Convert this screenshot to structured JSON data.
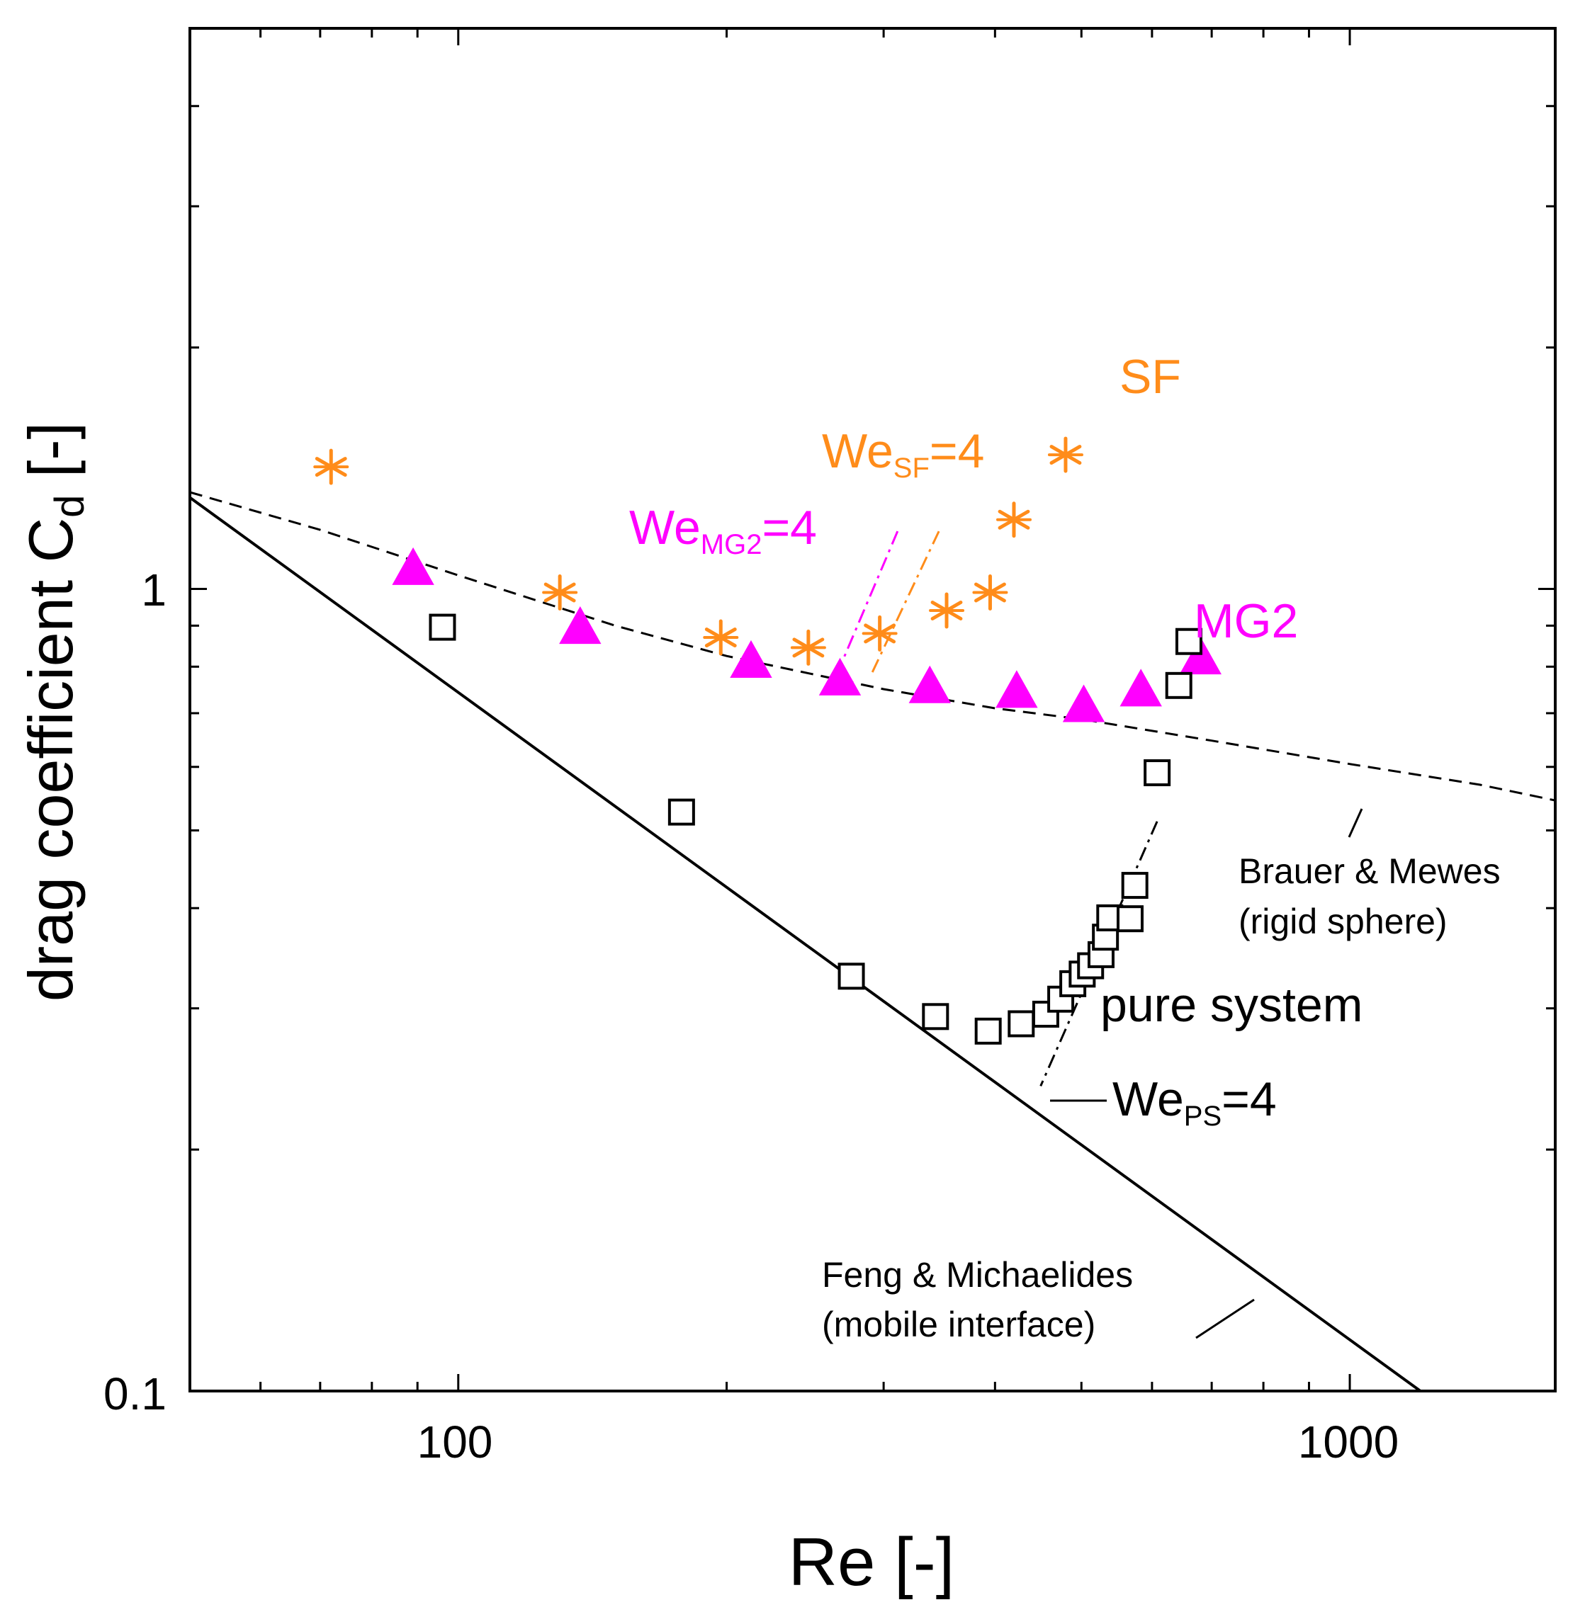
{
  "chart_data": {
    "type": "scatter",
    "xscale": "log",
    "yscale": "log",
    "xlim": [
      50,
      1700
    ],
    "ylim": [
      0.1,
      5
    ],
    "xlabel": "Re [-]",
    "ylabel_main": "drag coefficient C",
    "ylabel_sub": "d",
    "ylabel_tail": " [-]",
    "x_ticks": [
      {
        "value": 100,
        "label": "100"
      },
      {
        "value": 1000,
        "label": "1000"
      }
    ],
    "y_ticks": [
      {
        "value": 0.1,
        "label": "0.1"
      },
      {
        "value": 1,
        "label": "1"
      }
    ],
    "colors": {
      "sf": "#ff8c1a",
      "mg2": "#ff00ff",
      "pure": "#000000"
    },
    "series": [
      {
        "name": "SF",
        "marker": "asterisk",
        "x": [
          72,
          130,
          197,
          247,
          297,
          353,
          395,
          420,
          480
        ],
        "y": [
          1.42,
          0.99,
          0.87,
          0.845,
          0.88,
          0.94,
          0.99,
          1.22,
          1.47
        ]
      },
      {
        "name": "MG2",
        "marker": "triangle",
        "x": [
          89,
          137,
          213,
          268,
          338,
          423,
          503,
          583,
          680
        ],
        "y": [
          1.06,
          0.895,
          0.812,
          0.772,
          0.755,
          0.745,
          0.715,
          0.748,
          0.82
        ]
      },
      {
        "name": "pure system",
        "marker": "square",
        "x": [
          96,
          178,
          276,
          343,
          393,
          428,
          456,
          474,
          489,
          501,
          512,
          526,
          532,
          538,
          567,
          574,
          608,
          643,
          660
        ],
        "y": [
          0.896,
          0.527,
          0.329,
          0.293,
          0.281,
          0.287,
          0.295,
          0.308,
          0.322,
          0.331,
          0.339,
          0.35,
          0.368,
          0.389,
          0.388,
          0.427,
          0.59,
          0.758,
          0.86
        ]
      }
    ],
    "lines": [
      {
        "name": "Brauer & Mewes (rigid sphere)",
        "style": "dashed",
        "x": [
          50,
          70,
          100,
          150,
          200,
          300,
          400,
          500,
          700,
          1000,
          1400,
          1700
        ],
        "y": [
          1.32,
          1.185,
          1.04,
          0.9,
          0.825,
          0.75,
          0.71,
          0.688,
          0.647,
          0.605,
          0.57,
          0.545
        ]
      },
      {
        "name": "Feng & Michaelides (mobile interface)",
        "style": "solid",
        "x": [
          50,
          1200
        ],
        "y": [
          1.3,
          0.1
        ]
      },
      {
        "name": "We_MG2=4",
        "style": "dashdot",
        "color": "mg2",
        "x": [
          311,
          270
        ],
        "y": [
          1.18,
          0.815
        ]
      },
      {
        "name": "We_SF=4",
        "style": "dashdot",
        "color": "sf",
        "x": [
          346,
          291
        ],
        "y": [
          1.18,
          0.785
        ]
      },
      {
        "name": "We_PS=4",
        "style": "dashdot",
        "color": "pure",
        "x": [
          608,
          450
        ],
        "y": [
          0.513,
          0.24
        ]
      }
    ],
    "annotations": {
      "sf_label": "SF",
      "mg2_label": "MG2",
      "pure_label": "pure system",
      "we_main": "We",
      "we_eq": "=4",
      "we_sf_sub": "SF",
      "we_mg2_sub": "MG2",
      "we_ps_sub": "PS",
      "brauer_line1": "Brauer & Mewes",
      "brauer_line2": "(rigid sphere)",
      "feng_line1": "Feng & Michaelides",
      "feng_line2": "(mobile interface)"
    }
  }
}
